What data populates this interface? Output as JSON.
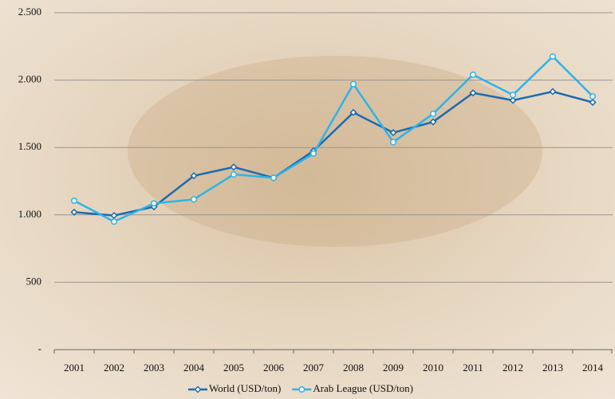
{
  "chart_data": {
    "type": "line",
    "categories": [
      "2001",
      "2002",
      "2003",
      "2004",
      "2005",
      "2006",
      "2007",
      "2008",
      "2009",
      "2010",
      "2011",
      "2012",
      "2013",
      "2014"
    ],
    "series": [
      {
        "name": "World (USD/ton)",
        "color": "#1b6bb0",
        "marker": "diamond",
        "values": [
          1020,
          995,
          1060,
          1290,
          1355,
          1275,
          1475,
          1760,
          1610,
          1690,
          1905,
          1850,
          1915,
          1835
        ]
      },
      {
        "name": "Arab League (USD/ton)",
        "color": "#2ab4ea",
        "marker": "circle",
        "values": [
          1105,
          950,
          1085,
          1115,
          1300,
          1275,
          1455,
          1970,
          1540,
          1750,
          2040,
          1890,
          2175,
          1880
        ]
      }
    ],
    "ylim": [
      0,
      2500
    ],
    "yticks": [
      {
        "value": 0,
        "label": "-"
      },
      500,
      {
        "value": 1000,
        "label": "1.000"
      },
      {
        "value": 1500,
        "label": "1.500"
      },
      {
        "value": 2000,
        "label": "2.000"
      },
      {
        "value": 2500,
        "label": "2.500"
      }
    ],
    "grid": true,
    "legend": "bottom"
  }
}
